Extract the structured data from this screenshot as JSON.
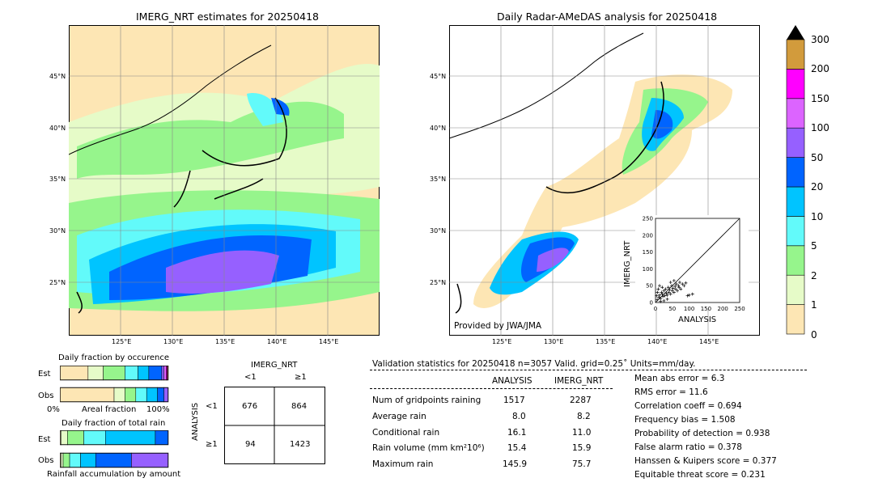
{
  "left_map": {
    "title": "IMERG_NRT estimates for 20250418",
    "lat_labels": [
      "45°N",
      "40°N",
      "35°N",
      "30°N",
      "25°N"
    ],
    "lon_labels": [
      "125°E",
      "130°E",
      "135°E",
      "140°E",
      "145°E"
    ]
  },
  "right_map": {
    "title": "Daily Radar-AMeDAS analysis for 20250418",
    "lat_labels": [
      "45°N",
      "40°N",
      "35°N",
      "30°N",
      "25°N"
    ],
    "lon_labels": [
      "125°E",
      "130°E",
      "135°E",
      "140°E",
      "145°E"
    ],
    "credit": "Provided by JWA/JMA"
  },
  "colorbar": {
    "ticks": [
      "0",
      "1",
      "2",
      "5",
      "10",
      "20",
      "50",
      "100",
      "150",
      "200",
      "300"
    ],
    "colors": [
      "#fde6b4",
      "#e6fbc8",
      "#96f58c",
      "#62fafa",
      "#00c4ff",
      "#0064ff",
      "#9660ff",
      "#dc64ff",
      "#ff00ff",
      "#d29b3c"
    ]
  },
  "scatter_inset": {
    "xlabel": "ANALYSIS",
    "ylabel": "IMERG_NRT",
    "ticks": [
      "0",
      "50",
      "100",
      "150",
      "200",
      "250"
    ]
  },
  "occurrence": {
    "title": "Daily fraction by occurence",
    "row_labels": [
      "Est",
      "Obs"
    ],
    "axis_left": "0%",
    "axis_mid": "Areal fraction",
    "axis_right": "100%"
  },
  "total_rain": {
    "title": "Daily fraction of total rain",
    "row_labels": [
      "Est",
      "Obs"
    ],
    "axis_label": "Rainfall accumulation by amount"
  },
  "contingency": {
    "col_title": "IMERG_NRT",
    "col_labels": [
      "<1",
      "≥1"
    ],
    "row_title": "ANALYSIS",
    "row_labels": [
      "<1",
      "≥1"
    ],
    "cells": [
      [
        "676",
        "864"
      ],
      [
        "94",
        "1423"
      ]
    ]
  },
  "validation": {
    "header": "Validation statistics for 20250418  n=3057 Valid. grid=0.25˚ Units=mm/day.",
    "col_analysis": "ANALYSIS",
    "col_imerg": "IMERG_NRT",
    "rows": [
      {
        "label": "Num of gridpoints raining",
        "analysis": "1517",
        "imerg": "2287"
      },
      {
        "label": "Average rain",
        "analysis": "8.0",
        "imerg": "8.2"
      },
      {
        "label": "Conditional rain",
        "analysis": "16.1",
        "imerg": "11.0"
      },
      {
        "label": "Rain volume (mm km²10⁶)",
        "analysis": "15.4",
        "imerg": "15.9"
      },
      {
        "label": "Maximum rain",
        "analysis": "145.9",
        "imerg": "75.7"
      }
    ],
    "scores": [
      "Mean abs error =    6.3",
      "RMS error =   11.6",
      "Correlation coeff =  0.694",
      "Frequency bias =  1.508",
      "Probability of detection =  0.938",
      "False alarm ratio =  0.378",
      "Hanssen & Kuipers score =  0.377",
      "Equitable threat score =  0.231"
    ]
  },
  "chart_data": [
    {
      "type": "scatter",
      "title": "",
      "xlabel": "ANALYSIS",
      "ylabel": "IMERG_NRT",
      "xlim": [
        0,
        250
      ],
      "ylim": [
        0,
        250
      ],
      "points": [
        [
          5,
          8
        ],
        [
          10,
          15
        ],
        [
          12,
          22
        ],
        [
          15,
          12
        ],
        [
          18,
          30
        ],
        [
          20,
          25
        ],
        [
          22,
          18
        ],
        [
          25,
          35
        ],
        [
          28,
          20
        ],
        [
          30,
          40
        ],
        [
          32,
          28
        ],
        [
          35,
          22
        ],
        [
          38,
          45
        ],
        [
          40,
          30
        ],
        [
          42,
          38
        ],
        [
          45,
          25
        ],
        [
          48,
          50
        ],
        [
          50,
          35
        ],
        [
          52,
          42
        ],
        [
          55,
          30
        ],
        [
          58,
          48
        ],
        [
          60,
          40
        ],
        [
          62,
          55
        ],
        [
          65,
          35
        ],
        [
          68,
          50
        ],
        [
          70,
          45
        ],
        [
          72,
          60
        ],
        [
          75,
          40
        ],
        [
          80,
          55
        ],
        [
          85,
          50
        ],
        [
          90,
          58
        ],
        [
          95,
          20
        ],
        [
          100,
          22
        ],
        [
          110,
          25
        ],
        [
          8,
          40
        ],
        [
          12,
          50
        ],
        [
          15,
          3
        ],
        [
          25,
          5
        ],
        [
          35,
          10
        ],
        [
          45,
          60
        ],
        [
          55,
          65
        ],
        [
          6,
          30
        ],
        [
          3,
          20
        ],
        [
          20,
          45
        ]
      ]
    },
    {
      "type": "bar",
      "title": "Daily fraction by occurence",
      "categories": [
        "0-1",
        "1-2",
        "2-5",
        "5-10",
        "10-20",
        "20-50",
        "50-100",
        "100-150",
        "150-200",
        "200-300"
      ],
      "series": [
        {
          "name": "Est",
          "values": [
            0.26,
            0.14,
            0.2,
            0.12,
            0.1,
            0.12,
            0.02,
            0.02,
            0.01,
            0.01
          ]
        },
        {
          "name": "Obs",
          "values": [
            0.5,
            0.1,
            0.1,
            0.1,
            0.1,
            0.06,
            0.04,
            0,
            0,
            0
          ]
        }
      ]
    },
    {
      "type": "bar",
      "title": "Daily fraction of total rain",
      "categories": [
        "0-1",
        "1-2",
        "2-5",
        "5-10",
        "10-20",
        "20-50",
        "50-100",
        "100-150",
        "150-200",
        "200-300"
      ],
      "series": [
        {
          "name": "Est",
          "values": [
            0.01,
            0.06,
            0.15,
            0.2,
            0.46,
            0.12,
            0,
            0,
            0,
            0
          ]
        },
        {
          "name": "Obs",
          "values": [
            0.01,
            0.02,
            0.06,
            0.1,
            0.14,
            0.33,
            0.34,
            0,
            0,
            0
          ]
        }
      ]
    }
  ]
}
